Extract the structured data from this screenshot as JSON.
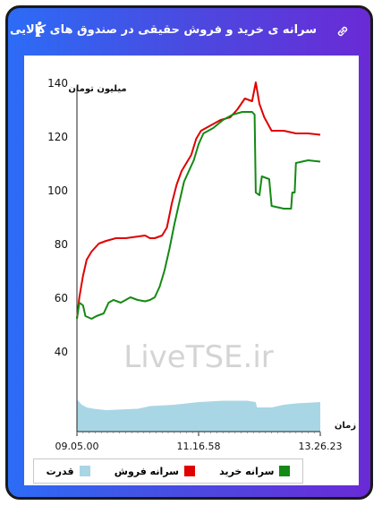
{
  "header": {
    "title": "سرانه ی خرید و فروش حقیقی در صندوق های کالایی",
    "info_icon": "info-icon",
    "link_icon": "link-icon"
  },
  "colors": {
    "buy": "#138a13",
    "sell": "#e00000",
    "power": "#a9d6e5",
    "accent": "#4a4ae0"
  },
  "watermark": "LiveTSE.ir",
  "chart_data": {
    "type": "line",
    "ylabel": "میلیون تومان",
    "xlabel": "زمان",
    "yticks": [
      40,
      60,
      80,
      100,
      120,
      140
    ],
    "ylim": [
      10,
      140
    ],
    "xlim": [
      0,
      1
    ],
    "xticks": [
      {
        "t": 0.0,
        "label": "09.05.00"
      },
      {
        "t": 0.5,
        "label": "11.16.58"
      },
      {
        "t": 1.0,
        "label": "13.26.23"
      }
    ],
    "series": [
      {
        "name": "سرانه فروش",
        "color": "#e00000",
        "points": [
          [
            0,
            52
          ],
          [
            0.01,
            60
          ],
          [
            0.025,
            68
          ],
          [
            0.04,
            74
          ],
          [
            0.06,
            77
          ],
          [
            0.09,
            80
          ],
          [
            0.12,
            81
          ],
          [
            0.16,
            82
          ],
          [
            0.2,
            82
          ],
          [
            0.24,
            82.5
          ],
          [
            0.28,
            83
          ],
          [
            0.3,
            82
          ],
          [
            0.32,
            82
          ],
          [
            0.35,
            83
          ],
          [
            0.37,
            86
          ],
          [
            0.39,
            95
          ],
          [
            0.41,
            102
          ],
          [
            0.43,
            107
          ],
          [
            0.45,
            110
          ],
          [
            0.47,
            113
          ],
          [
            0.49,
            119
          ],
          [
            0.51,
            122
          ],
          [
            0.55,
            124
          ],
          [
            0.59,
            126
          ],
          [
            0.63,
            127
          ],
          [
            0.66,
            130
          ],
          [
            0.69,
            134
          ],
          [
            0.72,
            133
          ],
          [
            0.735,
            140
          ],
          [
            0.75,
            132
          ],
          [
            0.77,
            127
          ],
          [
            0.8,
            122
          ],
          [
            0.85,
            122
          ],
          [
            0.9,
            121
          ],
          [
            0.95,
            121
          ],
          [
            1.0,
            120.5
          ]
        ]
      },
      {
        "name": "سرانه خرید",
        "color": "#138a13",
        "points": [
          [
            0,
            52
          ],
          [
            0.01,
            58
          ],
          [
            0.025,
            57
          ],
          [
            0.035,
            53
          ],
          [
            0.06,
            52
          ],
          [
            0.08,
            53
          ],
          [
            0.11,
            54
          ],
          [
            0.13,
            58
          ],
          [
            0.15,
            59
          ],
          [
            0.18,
            58
          ],
          [
            0.2,
            59
          ],
          [
            0.22,
            60
          ],
          [
            0.25,
            59
          ],
          [
            0.28,
            58.5
          ],
          [
            0.3,
            59
          ],
          [
            0.32,
            60
          ],
          [
            0.34,
            64
          ],
          [
            0.36,
            70
          ],
          [
            0.38,
            78
          ],
          [
            0.4,
            87
          ],
          [
            0.42,
            95
          ],
          [
            0.44,
            103
          ],
          [
            0.46,
            107
          ],
          [
            0.48,
            111
          ],
          [
            0.5,
            117
          ],
          [
            0.52,
            121
          ],
          [
            0.56,
            123
          ],
          [
            0.6,
            126
          ],
          [
            0.64,
            128
          ],
          [
            0.68,
            129
          ],
          [
            0.72,
            129
          ],
          [
            0.73,
            128
          ],
          [
            0.735,
            99
          ],
          [
            0.75,
            98
          ],
          [
            0.76,
            105
          ],
          [
            0.79,
            104
          ],
          [
            0.8,
            94
          ],
          [
            0.85,
            93
          ],
          [
            0.88,
            93
          ],
          [
            0.885,
            99
          ],
          [
            0.895,
            99
          ],
          [
            0.9,
            110
          ],
          [
            0.95,
            111
          ],
          [
            1.0,
            110.5
          ]
        ]
      },
      {
        "name": "قدرت",
        "color": "#a9d6e5",
        "points": [
          [
            0,
            22
          ],
          [
            0.02,
            20
          ],
          [
            0.04,
            19
          ],
          [
            0.07,
            18.5
          ],
          [
            0.12,
            18
          ],
          [
            0.25,
            18.5
          ],
          [
            0.3,
            19.5
          ],
          [
            0.4,
            20
          ],
          [
            0.5,
            21
          ],
          [
            0.6,
            21.5
          ],
          [
            0.7,
            21.5
          ],
          [
            0.735,
            21
          ],
          [
            0.74,
            19
          ],
          [
            0.8,
            19
          ],
          [
            0.85,
            20
          ],
          [
            0.9,
            20.5
          ],
          [
            1.0,
            21
          ]
        ]
      }
    ],
    "legend": [
      "سرانه خرید",
      "سرانه فروش",
      "قدرت"
    ],
    "legend_position": "bottom"
  }
}
